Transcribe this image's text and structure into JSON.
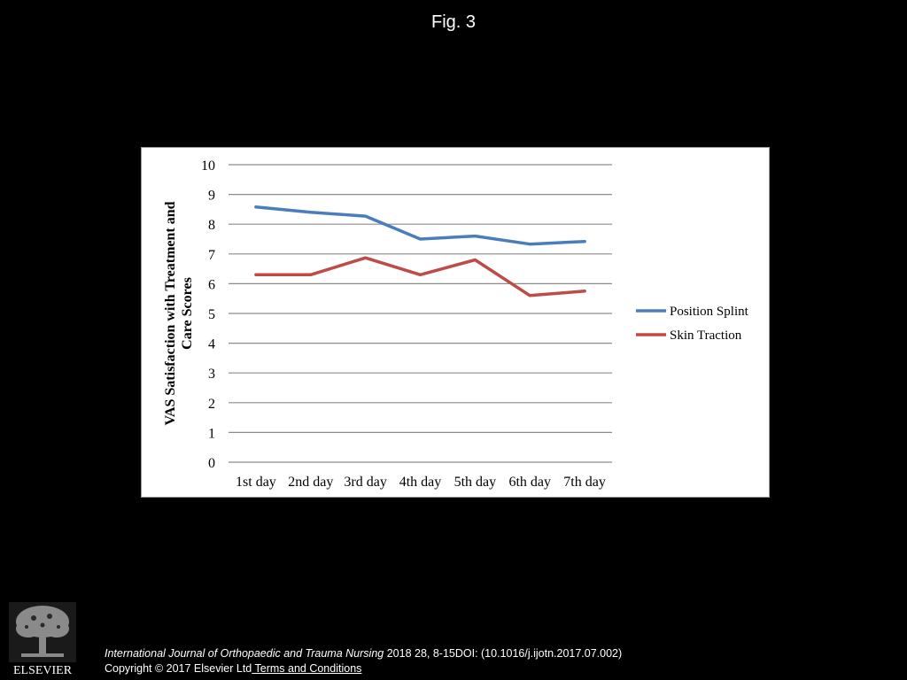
{
  "header": {
    "title": "Fig. 3"
  },
  "chart_data": {
    "type": "line",
    "title": "",
    "xlabel": "",
    "ylabel": "VAS Satisfaction with Treatment and Care Scores",
    "ylabel_lines": [
      "VAS Satisfaction with Treatment and",
      "Care Scores"
    ],
    "categories": [
      "1st day",
      "2nd day",
      "3rd day",
      "4th day",
      "5th day",
      "6th day",
      "7th day"
    ],
    "ylim": [
      0,
      10
    ],
    "yticks": [
      "0",
      "1",
      "2",
      "3",
      "4",
      "5",
      "6",
      "7",
      "8",
      "9",
      "10"
    ],
    "grid": true,
    "legend_position": "right",
    "series": [
      {
        "name": "Position Splint",
        "color": "#4a7ebb",
        "values": [
          8.58,
          8.4,
          8.27,
          7.5,
          7.6,
          7.33,
          7.42
        ]
      },
      {
        "name": "Skin Traction",
        "color": "#be4b48",
        "values": [
          6.3,
          6.3,
          6.87,
          6.3,
          6.8,
          5.6,
          5.75
        ]
      }
    ]
  },
  "footer": {
    "publisher": "ELSEVIER",
    "journal": "International Journal of Orthopaedic and Trauma Nursing",
    "citation_rest": " 2018 28, 8-15DOI: (10.1016/j.ijotn.2017.07.002)",
    "copyright": "Copyright © 2017 Elsevier Ltd",
    "terms_link": " Terms and Conditions"
  }
}
